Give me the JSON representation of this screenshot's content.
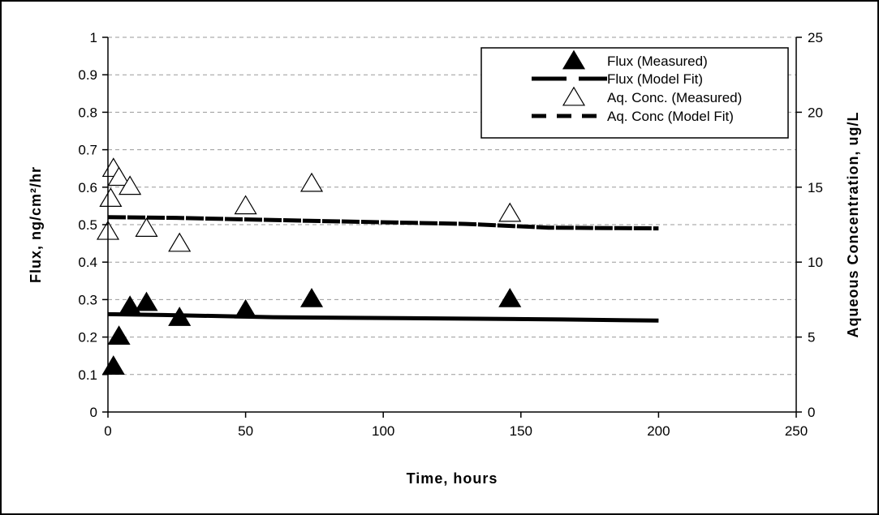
{
  "chart_data": {
    "type": "scatter",
    "xlabel": "Time, hours",
    "ylabel_left": "Flux, ng/cm²/hr",
    "ylabel_right": "Aqueous Concentration, ug/L",
    "xlim": [
      0,
      250
    ],
    "ylim_left": [
      0,
      1
    ],
    "ylim_right": [
      0,
      25
    ],
    "x_ticks": [
      "0",
      "50",
      "100",
      "150",
      "200",
      "250"
    ],
    "y_left_ticks": [
      "0",
      "0.1",
      "0.2",
      "0.3",
      "0.4",
      "0.5",
      "0.6",
      "0.7",
      "0.8",
      "0.9",
      "1"
    ],
    "y_right_ticks": [
      "0",
      "5",
      "10",
      "15",
      "20",
      "25"
    ],
    "grid": "horizontal dashed",
    "legend_position": "top-right",
    "series": [
      {
        "name": "Flux (Measured)",
        "axis": "left",
        "style": "filled-triangle",
        "color": "#000000",
        "points": [
          [
            2,
            0.12
          ],
          [
            4,
            0.2
          ],
          [
            8,
            0.28
          ],
          [
            14,
            0.29
          ],
          [
            26,
            0.25
          ],
          [
            50,
            0.27
          ],
          [
            74,
            0.3
          ],
          [
            146,
            0.3
          ]
        ]
      },
      {
        "name": "Flux (Model Fit)",
        "axis": "left",
        "style": "solid",
        "color": "#000000",
        "points": [
          [
            0,
            0.261
          ],
          [
            20,
            0.259
          ],
          [
            60,
            0.253
          ],
          [
            115,
            0.25
          ],
          [
            165,
            0.247
          ],
          [
            200,
            0.244
          ]
        ]
      },
      {
        "name": "Aq. Conc. (Measured)",
        "axis": "right",
        "style": "open-triangle",
        "color": "#000000",
        "points": [
          [
            0,
            12
          ],
          [
            1,
            14.2
          ],
          [
            2,
            16.2
          ],
          [
            4,
            15.6
          ],
          [
            8,
            15
          ],
          [
            14,
            12.2
          ],
          [
            26,
            11.2
          ],
          [
            50,
            13.7
          ],
          [
            74,
            15.2
          ],
          [
            146,
            13.2
          ]
        ]
      },
      {
        "name": "Aq. Conc (Model Fit)",
        "axis": "right",
        "style": "dashed",
        "color": "#000000",
        "points": [
          [
            0,
            13.0
          ],
          [
            25,
            12.95
          ],
          [
            75,
            12.75
          ],
          [
            130,
            12.55
          ],
          [
            160,
            12.3
          ],
          [
            200,
            12.25
          ]
        ]
      }
    ]
  }
}
